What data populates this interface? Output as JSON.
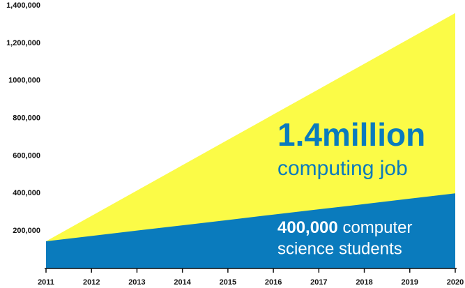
{
  "chart_data": {
    "type": "area",
    "x": [
      2011,
      2012,
      2013,
      2014,
      2015,
      2016,
      2017,
      2018,
      2019,
      2020
    ],
    "series": [
      {
        "name": "computing job",
        "color": "#fbfb47",
        "values": [
          145000,
          280000,
          415000,
          550000,
          685000,
          820000,
          955000,
          1090000,
          1225000,
          1360000
        ]
      },
      {
        "name": "computer science students",
        "color": "#0a7bbd",
        "values": [
          145000,
          173000,
          202000,
          230000,
          258000,
          287000,
          315000,
          343000,
          372000,
          400000
        ]
      }
    ],
    "xlim": [
      2011,
      2020
    ],
    "xticks": [
      2011,
      2012,
      2013,
      2014,
      2015,
      2016,
      2017,
      2018,
      2019,
      2020
    ],
    "ylim": [
      0,
      1400000
    ],
    "yticks": [
      {
        "value": 200000,
        "label": "200,000"
      },
      {
        "value": 400000,
        "label": "400,000"
      },
      {
        "value": 600000,
        "label": "600,000"
      },
      {
        "value": 800000,
        "label": "800,000"
      },
      {
        "value": 1000000,
        "label": "1000,000"
      },
      {
        "value": 1200000,
        "label": "1,200,000"
      },
      {
        "value": 1400000,
        "label": "1,400,000"
      }
    ],
    "annotations": [
      "1.4million",
      "computing job",
      "400,000",
      "computer",
      "science students"
    ]
  }
}
